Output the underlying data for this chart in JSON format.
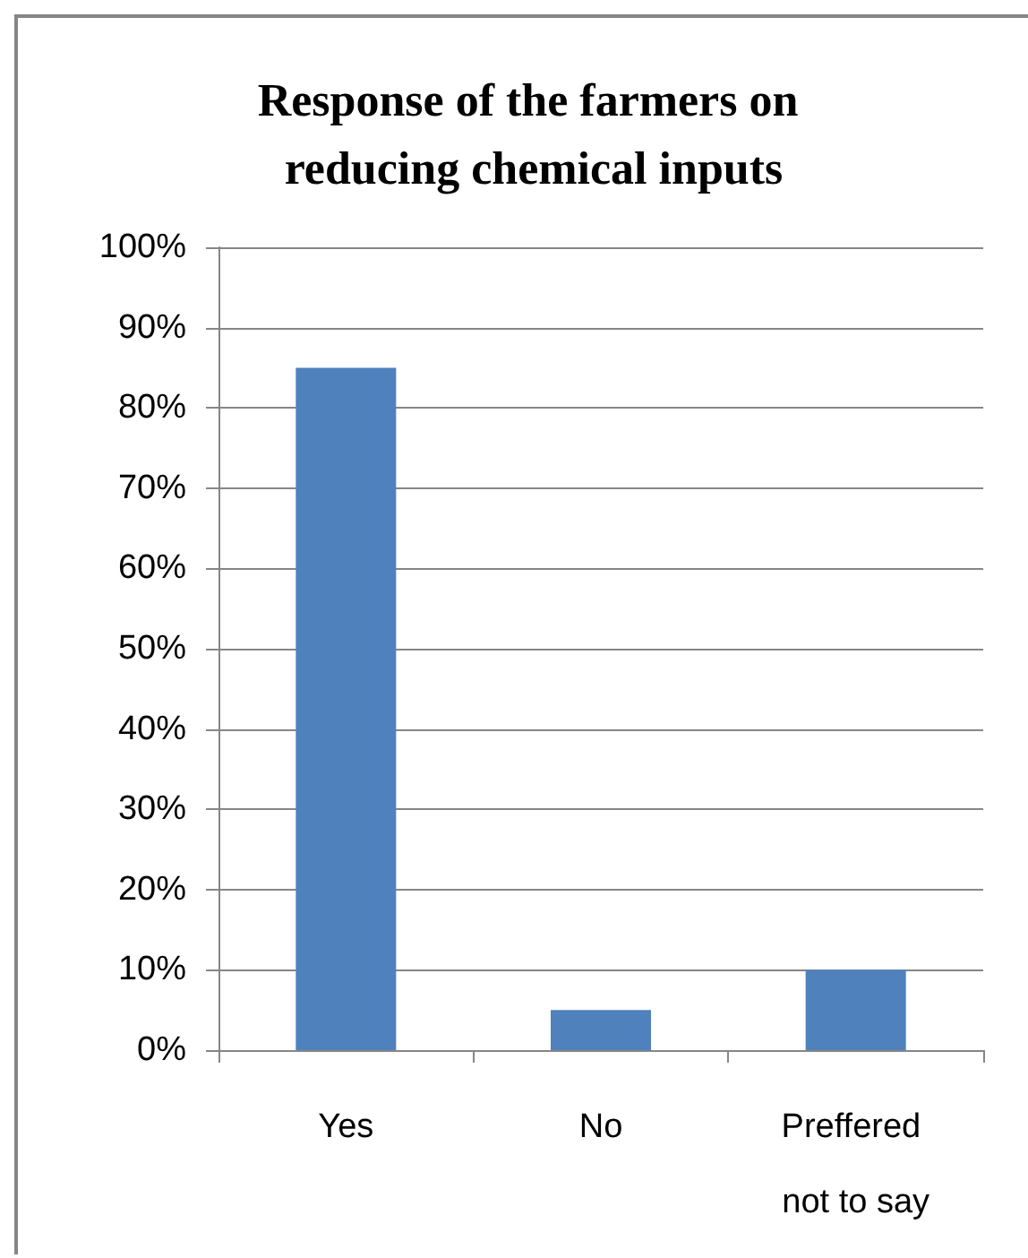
{
  "chart_data": {
    "type": "bar",
    "title": "Response of the farmers on reducing chemical inputs",
    "categories": [
      "Yes",
      "No",
      "Preffered not to say"
    ],
    "values": [
      85,
      5,
      10
    ],
    "color": "#4f81bd",
    "ylim": [
      0,
      100
    ],
    "yticks": [
      {
        "value": 0,
        "label": "0%"
      },
      {
        "value": 10,
        "label": "10%"
      },
      {
        "value": 20,
        "label": "20%"
      },
      {
        "value": 30,
        "label": "30%"
      },
      {
        "value": 40,
        "label": "40%"
      },
      {
        "value": 50,
        "label": "50%"
      },
      {
        "value": 60,
        "label": "60%"
      },
      {
        "value": 70,
        "label": "70%"
      },
      {
        "value": 80,
        "label": "80%"
      },
      {
        "value": 90,
        "label": "90%"
      },
      {
        "value": 100,
        "label": "100%"
      }
    ],
    "grid": "y"
  }
}
